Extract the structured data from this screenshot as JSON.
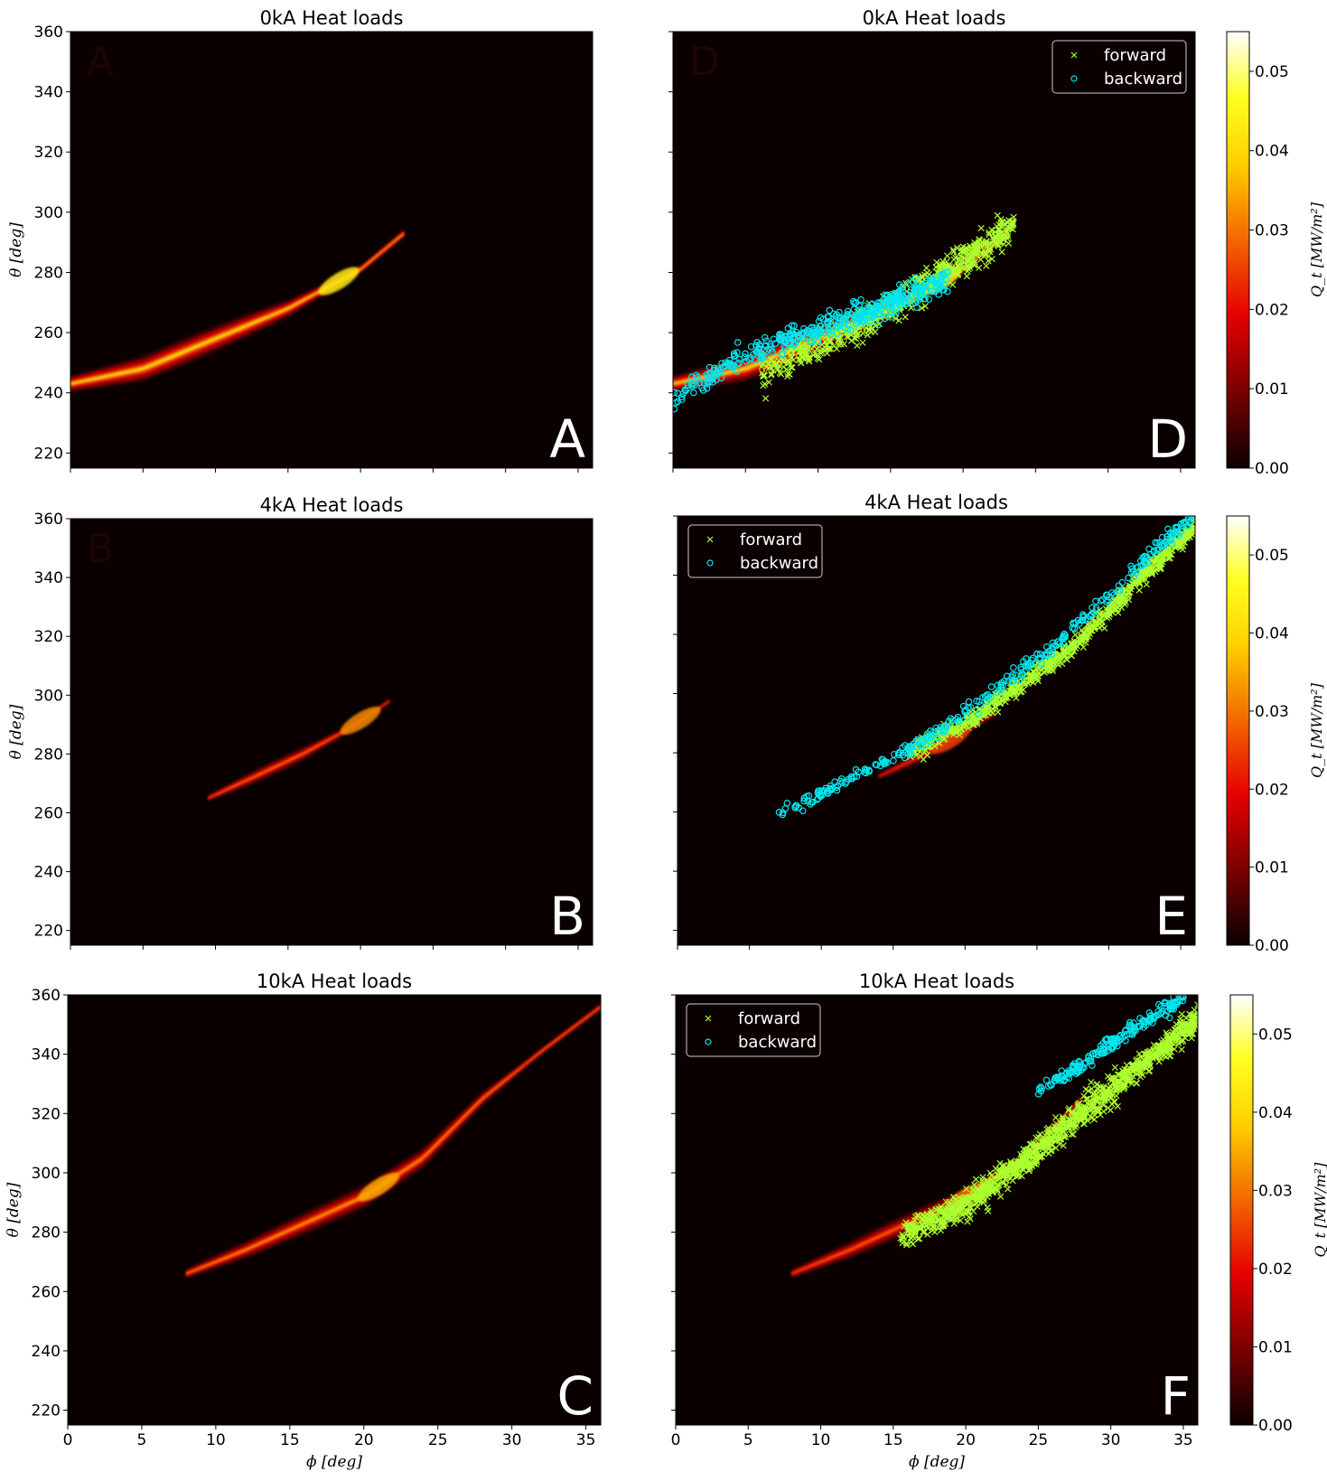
{
  "chart_data": [
    {
      "type": "heatmap",
      "panel": "A",
      "title": "0kA Heat loads",
      "xlabel": "",
      "ylabel": "θ [deg]",
      "xlim": [
        0,
        36
      ],
      "ylim": [
        215,
        360
      ],
      "y_ticks": [
        220,
        240,
        260,
        280,
        300,
        320,
        340,
        360
      ],
      "x_ticks_labeled": false,
      "colorbar": false,
      "heat_band": {
        "centerline": [
          [
            -2,
            241
          ],
          [
            5,
            248
          ],
          [
            10,
            258
          ],
          [
            15,
            268
          ],
          [
            20,
            281
          ],
          [
            23,
            293
          ]
        ],
        "width": 9,
        "peak_phi": 18.5,
        "peak_value": 0.044
      }
    },
    {
      "type": "heatmap",
      "panel": "B",
      "title": "4kA Heat loads",
      "xlabel": "",
      "ylabel": "θ [deg]",
      "xlim": [
        0,
        36
      ],
      "ylim": [
        215,
        360
      ],
      "y_ticks": [
        220,
        240,
        260,
        280,
        300,
        320,
        340,
        360
      ],
      "x_ticks_labeled": false,
      "colorbar": false,
      "heat_band": {
        "centerline": [
          [
            9.5,
            265
          ],
          [
            13,
            273
          ],
          [
            16,
            280
          ],
          [
            19,
            288
          ],
          [
            22,
            298
          ]
        ],
        "width": 5,
        "peak_phi": 20,
        "peak_value": 0.032
      }
    },
    {
      "type": "heatmap",
      "panel": "C",
      "title": "10kA Heat loads",
      "xlabel": "ϕ [deg]",
      "ylabel": "θ [deg]",
      "xlim": [
        0,
        36
      ],
      "ylim": [
        215,
        360
      ],
      "x_ticks": [
        0,
        5,
        10,
        15,
        20,
        25,
        30,
        35
      ],
      "y_ticks": [
        220,
        240,
        260,
        280,
        300,
        320,
        340,
        360
      ],
      "colorbar": false,
      "heat_band": {
        "centerline": [
          [
            8,
            266
          ],
          [
            12,
            274
          ],
          [
            16,
            283
          ],
          [
            20,
            292
          ],
          [
            24,
            305
          ],
          [
            28,
            325
          ],
          [
            32,
            341
          ],
          [
            36,
            356
          ]
        ],
        "width": 8,
        "peak_phi": 21,
        "peak_value": 0.035
      }
    },
    {
      "type": "scatter",
      "panel": "D",
      "title": "0kA Heat loads",
      "xlabel": "",
      "ylabel": "",
      "xlim": [
        0,
        36
      ],
      "ylim": [
        215,
        360
      ],
      "x_ticks_labeled": false,
      "y_ticks_labeled": false,
      "legend": {
        "position": "top-right",
        "entries": [
          "forward",
          "backward"
        ]
      },
      "series": [
        {
          "name": "forward",
          "marker": "x",
          "color": "#adff2f",
          "x_range": [
            6,
            23.5
          ],
          "trend": [
            [
              6,
              246
            ],
            [
              10,
              255
            ],
            [
              14,
              265
            ],
            [
              18,
              278
            ],
            [
              22,
              290
            ],
            [
              23.5,
              297
            ]
          ],
          "spread": 5,
          "n": 600
        },
        {
          "name": "backward",
          "marker": "o",
          "color": "#00e5ee",
          "x_range": [
            0,
            19
          ],
          "trend": [
            [
              0,
              238
            ],
            [
              3,
              247
            ],
            [
              6,
              254
            ],
            [
              10,
              261
            ],
            [
              14,
              268
            ],
            [
              17,
              274
            ],
            [
              19,
              278
            ]
          ],
          "spread": 4,
          "n": 420
        }
      ],
      "heat_band": {
        "centerline": [
          [
            -2,
            241
          ],
          [
            5,
            248
          ],
          [
            10,
            258
          ],
          [
            15,
            268
          ],
          [
            20,
            281
          ],
          [
            23,
            293
          ]
        ],
        "width": 9,
        "peak_phi": 18.5,
        "peak_value": 0.044
      },
      "colorbar": {
        "label": "Q_t [MW/m²]",
        "range": [
          0.0,
          0.055
        ],
        "ticks": [
          "0.00",
          "0.01",
          "0.02",
          "0.03",
          "0.04",
          "0.05"
        ]
      }
    },
    {
      "type": "scatter",
      "panel": "E",
      "title": "4kA Heat loads",
      "xlabel": "",
      "ylabel": "",
      "xlim": [
        0,
        36
      ],
      "ylim": [
        215,
        360
      ],
      "x_ticks_labeled": false,
      "y_ticks_labeled": false,
      "legend": {
        "position": "top-left",
        "entries": [
          "forward",
          "backward"
        ]
      },
      "series": [
        {
          "name": "forward",
          "marker": "x",
          "color": "#adff2f",
          "x_range": [
            16,
            36
          ],
          "trend": [
            [
              16,
              280
            ],
            [
              20,
              290
            ],
            [
              24,
              303
            ],
            [
              28,
              318
            ],
            [
              32,
              338
            ],
            [
              36,
              356
            ]
          ],
          "spread": 3,
          "n": 700
        },
        {
          "name": "backward",
          "marker": "o",
          "color": "#00e5ee",
          "x_range": [
            7,
            36
          ],
          "trend": [
            [
              7,
              260
            ],
            [
              10,
              266
            ],
            [
              14,
              276
            ],
            [
              17,
              283
            ],
            [
              26,
              315
            ],
            [
              30,
              333
            ],
            [
              34,
              352
            ],
            [
              36,
              360
            ]
          ],
          "spread": 2.5,
          "n": 330
        }
      ],
      "heat_band": {
        "centerline": [
          [
            14,
            272
          ],
          [
            17,
            279
          ],
          [
            20,
            287
          ],
          [
            22,
            293
          ]
        ],
        "width": 4,
        "peak_phi": 19,
        "peak_value": 0.025
      },
      "colorbar": {
        "label": "Q_t [MW/m²]",
        "range": [
          0.0,
          0.055
        ],
        "ticks": [
          "0.00",
          "0.01",
          "0.02",
          "0.03",
          "0.04",
          "0.05"
        ]
      }
    },
    {
      "type": "scatter",
      "panel": "F",
      "title": "10kA Heat loads",
      "xlabel": "ϕ [deg]",
      "ylabel": "",
      "xlim": [
        0,
        36
      ],
      "ylim": [
        215,
        360
      ],
      "x_ticks": [
        0,
        5,
        10,
        15,
        20,
        25,
        30,
        35
      ],
      "y_ticks_labeled": false,
      "legend": {
        "position": "top-left",
        "entries": [
          "forward",
          "backward"
        ]
      },
      "series": [
        {
          "name": "forward",
          "marker": "x",
          "color": "#adff2f",
          "x_range": [
            15.5,
            36
          ],
          "trend": [
            [
              15.5,
              279
            ],
            [
              20,
              289
            ],
            [
              24,
              304
            ],
            [
              28,
              320
            ],
            [
              32,
              336
            ],
            [
              36,
              352
            ]
          ],
          "spread": 4.5,
          "n": 1100
        },
        {
          "name": "backward",
          "marker": "o",
          "color": "#00e5ee",
          "x_range": [
            25,
            35
          ],
          "trend": [
            [
              25,
              328
            ],
            [
              28,
              336
            ],
            [
              31,
              347
            ],
            [
              35,
              359
            ]
          ],
          "spread": 2.5,
          "n": 190
        }
      ],
      "heat_band": {
        "centerline": [
          [
            8,
            266
          ],
          [
            12,
            274
          ],
          [
            16,
            283
          ],
          [
            20,
            292
          ],
          [
            24,
            305
          ],
          [
            28,
            325
          ]
        ],
        "width": 7,
        "peak_phi": 20,
        "peak_value": 0.03
      },
      "colorbar": {
        "label": "Q_t [MW/m²]",
        "range": [
          0.0,
          0.055
        ],
        "ticks": [
          "0.00",
          "0.01",
          "0.02",
          "0.03",
          "0.04",
          "0.05"
        ]
      }
    }
  ]
}
